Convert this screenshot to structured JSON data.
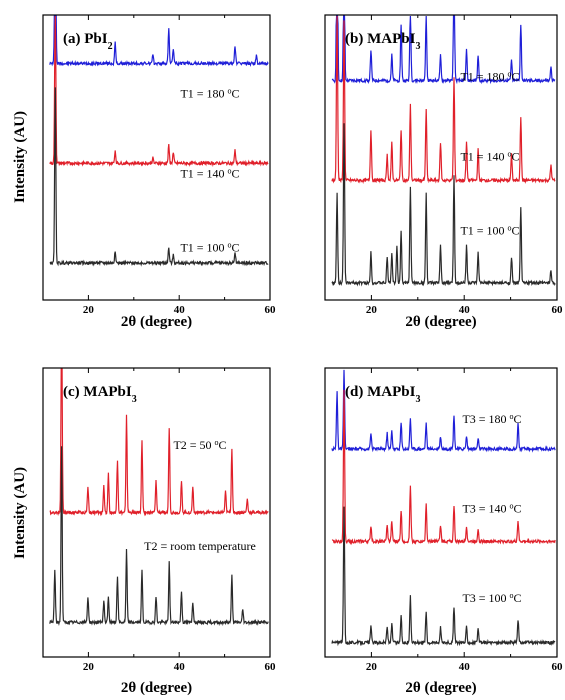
{
  "figure": {
    "background": "#ffffff"
  },
  "chart_data": [
    {
      "type": "line",
      "panel_label": "(a)",
      "material": "PbI",
      "material_sub": "2",
      "xlabel": "2θ (degree)",
      "ylabel": "Intensity (AU)",
      "xlim": [
        10,
        60
      ],
      "xticks": [
        20,
        40,
        60
      ],
      "yticks": false,
      "series": [
        {
          "name": "T1 = 180 °C",
          "label_main": "T1 = 180 ",
          "label_sup": "o",
          "label_end": "C",
          "color": "#1f1fd8",
          "offset": 0.83,
          "peaks": [
            [
              12.7,
              1.0
            ],
            [
              25.9,
              0.08
            ],
            [
              37.7,
              0.14
            ],
            [
              38.7,
              0.06
            ],
            [
              52.3,
              0.07
            ],
            [
              57.0,
              0.03
            ],
            [
              34.2,
              0.03
            ]
          ]
        },
        {
          "name": "T1 = 140 °C",
          "label_main": "T1 = 140 ",
          "label_sup": "o",
          "label_end": "C",
          "color": "#e0202a",
          "offset": 0.48,
          "peaks": [
            [
              12.7,
              0.62
            ],
            [
              25.9,
              0.05
            ],
            [
              37.7,
              0.07
            ],
            [
              38.7,
              0.04
            ],
            [
              52.3,
              0.05
            ],
            [
              34.2,
              0.02
            ]
          ]
        },
        {
          "name": "T1 = 100 °C",
          "label_main": "T1 = 100 ",
          "label_sup": "o",
          "label_end": "C",
          "color": "#2a2a2a",
          "offset": 0.13,
          "peaks": [
            [
              12.7,
              0.68
            ],
            [
              25.9,
              0.05
            ],
            [
              37.7,
              0.06
            ],
            [
              38.7,
              0.03
            ],
            [
              52.3,
              0.04
            ]
          ]
        }
      ]
    },
    {
      "type": "line",
      "panel_label": "(b)",
      "material": "MAPbI",
      "material_sub": "3",
      "xlabel": "2θ (degree)",
      "ylabel": "",
      "xlim": [
        10,
        60
      ],
      "xticks": [
        20,
        40,
        60
      ],
      "yticks": false,
      "series": [
        {
          "name": "T1 = 180 °C",
          "label_main": "T1 = 180 ",
          "label_sup": "o",
          "label_end": "C",
          "color": "#1f1fd8",
          "offset": 0.77,
          "peaks": [
            [
              12.6,
              0.75
            ],
            [
              14.1,
              0.6
            ],
            [
              19.9,
              0.12
            ],
            [
              24.4,
              0.1
            ],
            [
              26.4,
              0.22
            ],
            [
              28.4,
              0.28
            ],
            [
              31.8,
              0.25
            ],
            [
              34.9,
              0.1
            ],
            [
              37.8,
              0.48
            ],
            [
              40.5,
              0.12
            ],
            [
              43.0,
              0.1
            ],
            [
              50.2,
              0.08
            ],
            [
              52.2,
              0.22
            ],
            [
              58.7,
              0.05
            ]
          ]
        },
        {
          "name": "T1 = 140 °C",
          "label_main": "T1 = 140 ",
          "label_sup": "o",
          "label_end": "C",
          "color": "#e0202a",
          "offset": 0.42,
          "peaks": [
            [
              12.6,
              0.68
            ],
            [
              14.1,
              0.62
            ],
            [
              19.9,
              0.2
            ],
            [
              23.4,
              0.1
            ],
            [
              24.4,
              0.15
            ],
            [
              26.4,
              0.2
            ],
            [
              28.4,
              0.3
            ],
            [
              31.8,
              0.28
            ],
            [
              34.9,
              0.15
            ],
            [
              37.8,
              0.4
            ],
            [
              40.5,
              0.15
            ],
            [
              43.0,
              0.12
            ],
            [
              50.2,
              0.1
            ],
            [
              52.2,
              0.25
            ],
            [
              58.7,
              0.06
            ]
          ]
        },
        {
          "name": "T1 = 100 °C",
          "label_main": "T1 = 100 ",
          "label_sup": "o",
          "label_end": "C",
          "color": "#2a2a2a",
          "offset": 0.06,
          "peaks": [
            [
              12.6,
              0.35
            ],
            [
              14.1,
              0.62
            ],
            [
              19.9,
              0.12
            ],
            [
              23.4,
              0.1
            ],
            [
              24.4,
              0.12
            ],
            [
              25.5,
              0.15
            ],
            [
              26.4,
              0.2
            ],
            [
              28.4,
              0.38
            ],
            [
              31.8,
              0.35
            ],
            [
              34.9,
              0.15
            ],
            [
              37.8,
              0.42
            ],
            [
              40.5,
              0.15
            ],
            [
              43.0,
              0.12
            ],
            [
              50.2,
              0.1
            ],
            [
              52.2,
              0.3
            ],
            [
              58.7,
              0.05
            ]
          ]
        }
      ]
    },
    {
      "type": "line",
      "panel_label": "(c)",
      "material": "MAPbI",
      "material_sub": "3",
      "xlabel": "2θ (degree)",
      "ylabel": "Intensity (AU)",
      "xlim": [
        10,
        60
      ],
      "xticks": [
        20,
        40,
        60
      ],
      "yticks": false,
      "series": [
        {
          "name": "T2 = 50 °C",
          "label_main": "T2 = 50 ",
          "label_sup": "o",
          "label_end": "C",
          "color": "#e0202a",
          "offset": 0.5,
          "peaks": [
            [
              14.1,
              0.8
            ],
            [
              19.9,
              0.1
            ],
            [
              23.4,
              0.1
            ],
            [
              24.4,
              0.15
            ],
            [
              26.4,
              0.2
            ],
            [
              28.4,
              0.37
            ],
            [
              31.8,
              0.28
            ],
            [
              34.9,
              0.12
            ],
            [
              37.8,
              0.33
            ],
            [
              40.5,
              0.12
            ],
            [
              43.0,
              0.1
            ],
            [
              50.2,
              0.08
            ],
            [
              51.6,
              0.25
            ],
            [
              55.0,
              0.05
            ]
          ]
        },
        {
          "name": "T2 = room temperature",
          "label_main": "T2 = room temperature",
          "label_sup": "",
          "label_end": "",
          "color": "#2a2a2a",
          "offset": 0.12,
          "peaks": [
            [
              12.6,
              0.2
            ],
            [
              14.1,
              0.68
            ],
            [
              19.9,
              0.1
            ],
            [
              23.4,
              0.08
            ],
            [
              24.4,
              0.1
            ],
            [
              26.4,
              0.18
            ],
            [
              28.4,
              0.28
            ],
            [
              31.8,
              0.2
            ],
            [
              34.9,
              0.1
            ],
            [
              37.8,
              0.23
            ],
            [
              40.5,
              0.12
            ],
            [
              43.0,
              0.08
            ],
            [
              51.6,
              0.18
            ],
            [
              54.0,
              0.05
            ]
          ]
        }
      ]
    },
    {
      "type": "line",
      "panel_label": "(d)",
      "material": "MAPbI",
      "material_sub": "3",
      "xlabel": "2θ (degree)",
      "ylabel": "",
      "xlim": [
        10,
        60
      ],
      "xticks": [
        20,
        40,
        60
      ],
      "yticks": false,
      "series": [
        {
          "name": "T3 = 180 °C",
          "label_main": "T3 = 180 ",
          "label_sup": "o",
          "label_end": "C",
          "color": "#1f1fd8",
          "offset": 0.72,
          "peaks": [
            [
              12.6,
              0.22
            ],
            [
              14.1,
              0.3
            ],
            [
              19.9,
              0.06
            ],
            [
              23.4,
              0.06
            ],
            [
              24.4,
              0.07
            ],
            [
              26.4,
              0.1
            ],
            [
              28.4,
              0.12
            ],
            [
              31.8,
              0.1
            ],
            [
              34.9,
              0.05
            ],
            [
              37.8,
              0.13
            ],
            [
              40.5,
              0.05
            ],
            [
              43.0,
              0.04
            ],
            [
              51.6,
              0.1
            ]
          ]
        },
        {
          "name": "T3 = 140 °C",
          "label_main": "T3 = 140 ",
          "label_sup": "o",
          "label_end": "C",
          "color": "#e0202a",
          "offset": 0.4,
          "peaks": [
            [
              14.1,
              0.58
            ],
            [
              19.9,
              0.06
            ],
            [
              23.4,
              0.06
            ],
            [
              24.4,
              0.08
            ],
            [
              26.4,
              0.12
            ],
            [
              28.4,
              0.22
            ],
            [
              31.8,
              0.14
            ],
            [
              34.9,
              0.06
            ],
            [
              37.8,
              0.14
            ],
            [
              40.5,
              0.06
            ],
            [
              43.0,
              0.05
            ],
            [
              51.6,
              0.08
            ]
          ]
        },
        {
          "name": "T3 = 100 °C",
          "label_main": "T3 = 100 ",
          "label_sup": "o",
          "label_end": "C",
          "color": "#2a2a2a",
          "offset": 0.05,
          "peaks": [
            [
              14.1,
              0.52
            ],
            [
              19.9,
              0.06
            ],
            [
              23.4,
              0.06
            ],
            [
              24.4,
              0.07
            ],
            [
              26.4,
              0.1
            ],
            [
              28.4,
              0.18
            ],
            [
              31.8,
              0.12
            ],
            [
              34.9,
              0.06
            ],
            [
              37.8,
              0.14
            ],
            [
              40.5,
              0.06
            ],
            [
              43.0,
              0.05
            ],
            [
              51.6,
              0.09
            ]
          ]
        }
      ]
    }
  ]
}
